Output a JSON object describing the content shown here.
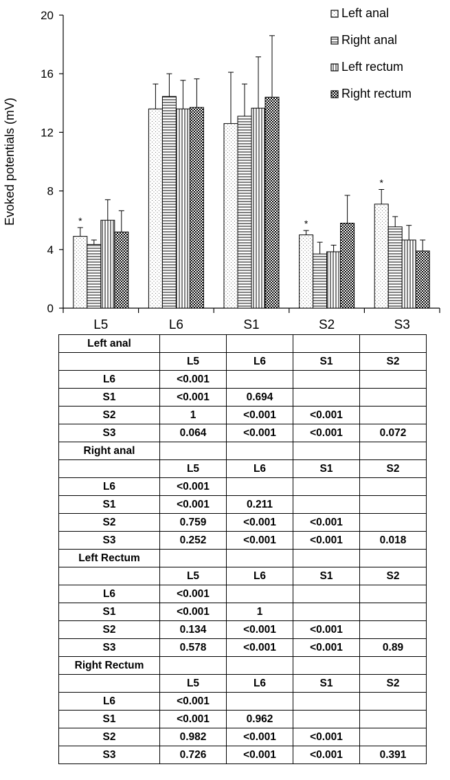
{
  "chart_data": {
    "type": "bar",
    "categories": [
      "L5",
      "L6",
      "S1",
      "S2",
      "S3"
    ],
    "ylabel": "Evoked potentials (mV)",
    "xlabel": "",
    "ylim": [
      0,
      20
    ],
    "yticks": [
      0,
      4,
      8,
      12,
      16,
      20
    ],
    "legend_position": "top-right",
    "series": [
      {
        "name": "Left anal",
        "pattern": "dots",
        "values": [
          4.9,
          13.6,
          12.6,
          5.0,
          7.1
        ],
        "errors": [
          0.6,
          1.7,
          3.5,
          0.3,
          1.0
        ]
      },
      {
        "name": "Right anal",
        "pattern": "horizontal-lines",
        "values": [
          4.35,
          14.45,
          13.1,
          3.7,
          5.55
        ],
        "errors": [
          0.3,
          1.55,
          2.2,
          0.8,
          0.7
        ]
      },
      {
        "name": "Left rectum",
        "pattern": "vertical-lines",
        "values": [
          6.0,
          13.6,
          13.65,
          3.85,
          4.65
        ],
        "errors": [
          1.4,
          1.95,
          3.5,
          0.45,
          1.0
        ]
      },
      {
        "name": "Right rectum",
        "pattern": "checkerboard",
        "values": [
          5.2,
          13.7,
          14.4,
          5.8,
          3.9
        ],
        "errors": [
          1.45,
          1.95,
          4.2,
          1.9,
          0.75
        ]
      }
    ],
    "annotations": [
      {
        "text": "*",
        "series": "Left anal",
        "category": "L5"
      },
      {
        "text": "*",
        "series": "Left anal",
        "category": "S2"
      },
      {
        "text": "*",
        "series": "Left anal",
        "category": "S3"
      }
    ]
  },
  "table": {
    "columns": [
      "L5",
      "L6",
      "S1",
      "S2"
    ],
    "groups": [
      {
        "title": "Left anal",
        "rows": [
          {
            "label": "L6",
            "cells": [
              "<0.001",
              "",
              "",
              ""
            ]
          },
          {
            "label": "S1",
            "cells": [
              "<0.001",
              "0.694",
              "",
              ""
            ]
          },
          {
            "label": "S2",
            "cells": [
              "1",
              "<0.001",
              "<0.001",
              ""
            ]
          },
          {
            "label": "S3",
            "cells": [
              "0.064",
              "<0.001",
              "<0.001",
              "0.072"
            ]
          }
        ]
      },
      {
        "title": "Right anal",
        "rows": [
          {
            "label": "L6",
            "cells": [
              "<0.001",
              "",
              "",
              ""
            ]
          },
          {
            "label": "S1",
            "cells": [
              "<0.001",
              "0.211",
              "",
              ""
            ]
          },
          {
            "label": "S2",
            "cells": [
              "0.759",
              "<0.001",
              "<0.001",
              ""
            ]
          },
          {
            "label": "S3",
            "cells": [
              "0.252",
              "<0.001",
              "<0.001",
              "0.018"
            ]
          }
        ]
      },
      {
        "title": "Left Rectum",
        "rows": [
          {
            "label": "L6",
            "cells": [
              "<0.001",
              "",
              "",
              ""
            ]
          },
          {
            "label": "S1",
            "cells": [
              "<0.001",
              "1",
              "",
              ""
            ]
          },
          {
            "label": "S2",
            "cells": [
              "0.134",
              "<0.001",
              "<0.001",
              ""
            ]
          },
          {
            "label": "S3",
            "cells": [
              "0.578",
              "<0.001",
              "<0.001",
              "0.89"
            ]
          }
        ]
      },
      {
        "title": "Right Rectum",
        "rows": [
          {
            "label": "L6",
            "cells": [
              "<0.001",
              "",
              "",
              ""
            ]
          },
          {
            "label": "S1",
            "cells": [
              "<0.001",
              "0.962",
              "",
              ""
            ]
          },
          {
            "label": "S2",
            "cells": [
              "0.982",
              "<0.001",
              "<0.001",
              ""
            ]
          },
          {
            "label": "S3",
            "cells": [
              "0.726",
              "<0.001",
              "<0.001",
              "0.391"
            ]
          }
        ]
      }
    ]
  }
}
